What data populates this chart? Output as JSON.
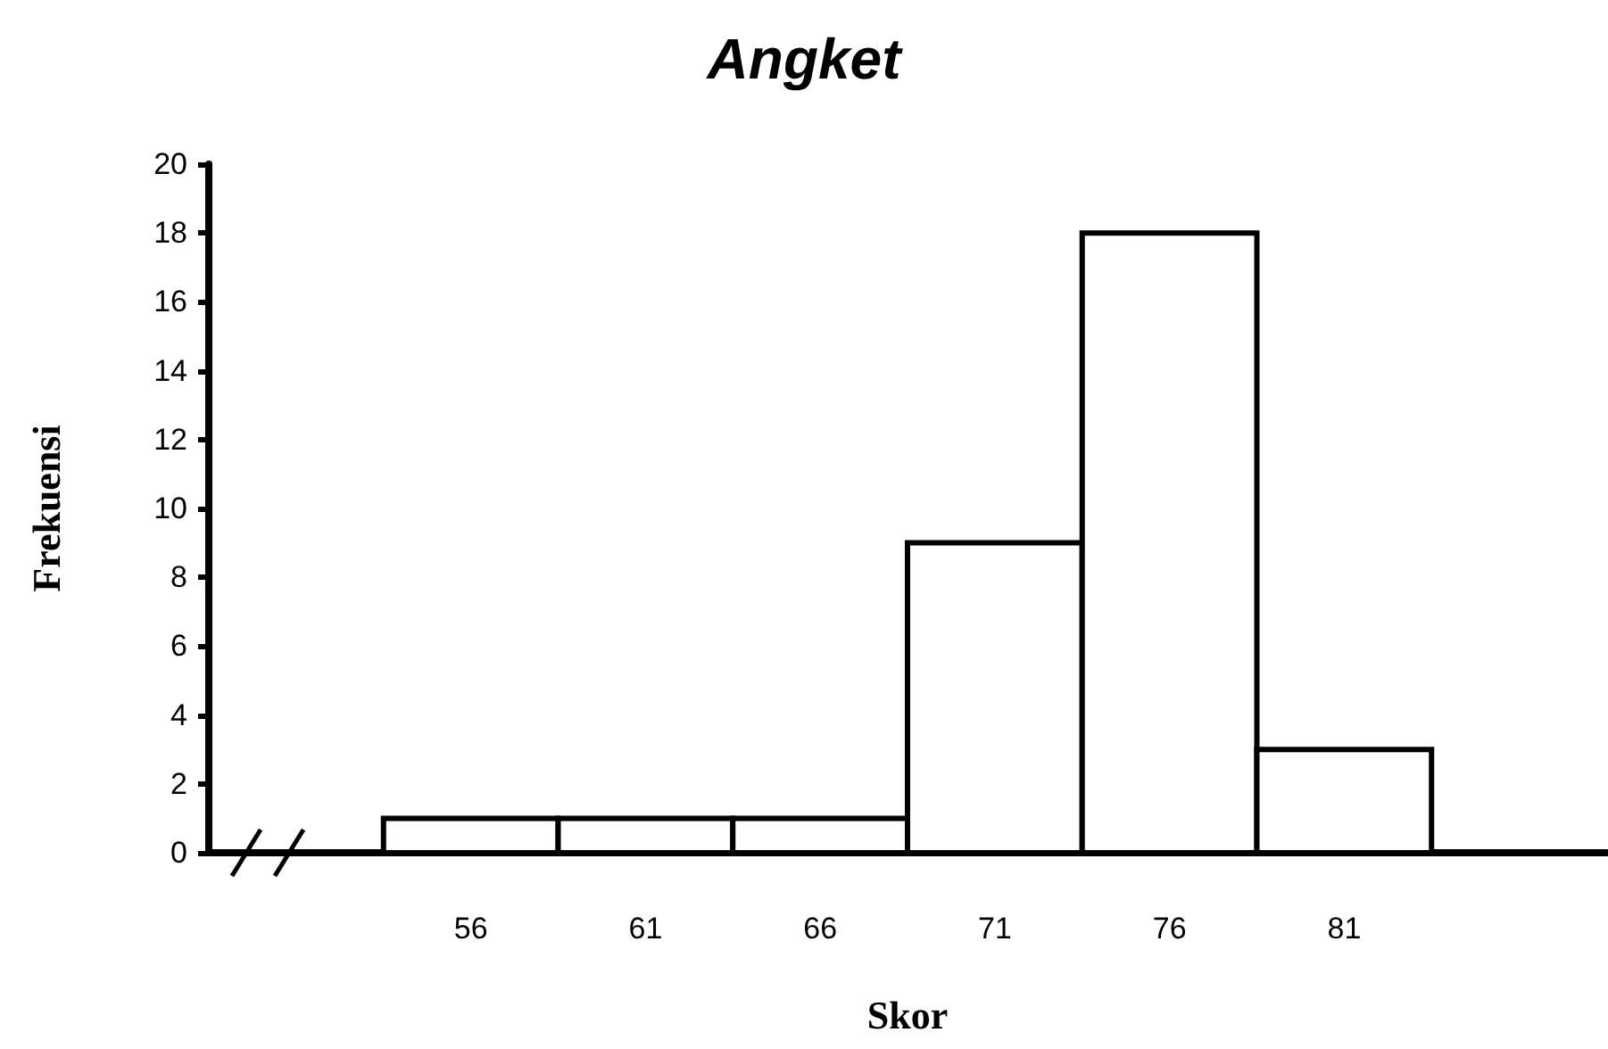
{
  "chart_data": {
    "type": "histogram",
    "title": "Angket",
    "xlabel": "Skor",
    "ylabel": "Frekuensi",
    "bins": [
      53.5,
      58.5,
      63.5,
      68.5,
      73.5,
      78.5,
      83.5
    ],
    "values": [
      1,
      1,
      1,
      9,
      18,
      3
    ],
    "color": "#ffffff",
    "xlim": [
      48.5,
      88.5
    ],
    "xticks": [
      56,
      61,
      66,
      71,
      76,
      81
    ],
    "ylim": [
      0,
      20
    ],
    "yticks": [
      0,
      2,
      4,
      6,
      8,
      10,
      12,
      14,
      16,
      18,
      20
    ],
    "grid": false
  }
}
